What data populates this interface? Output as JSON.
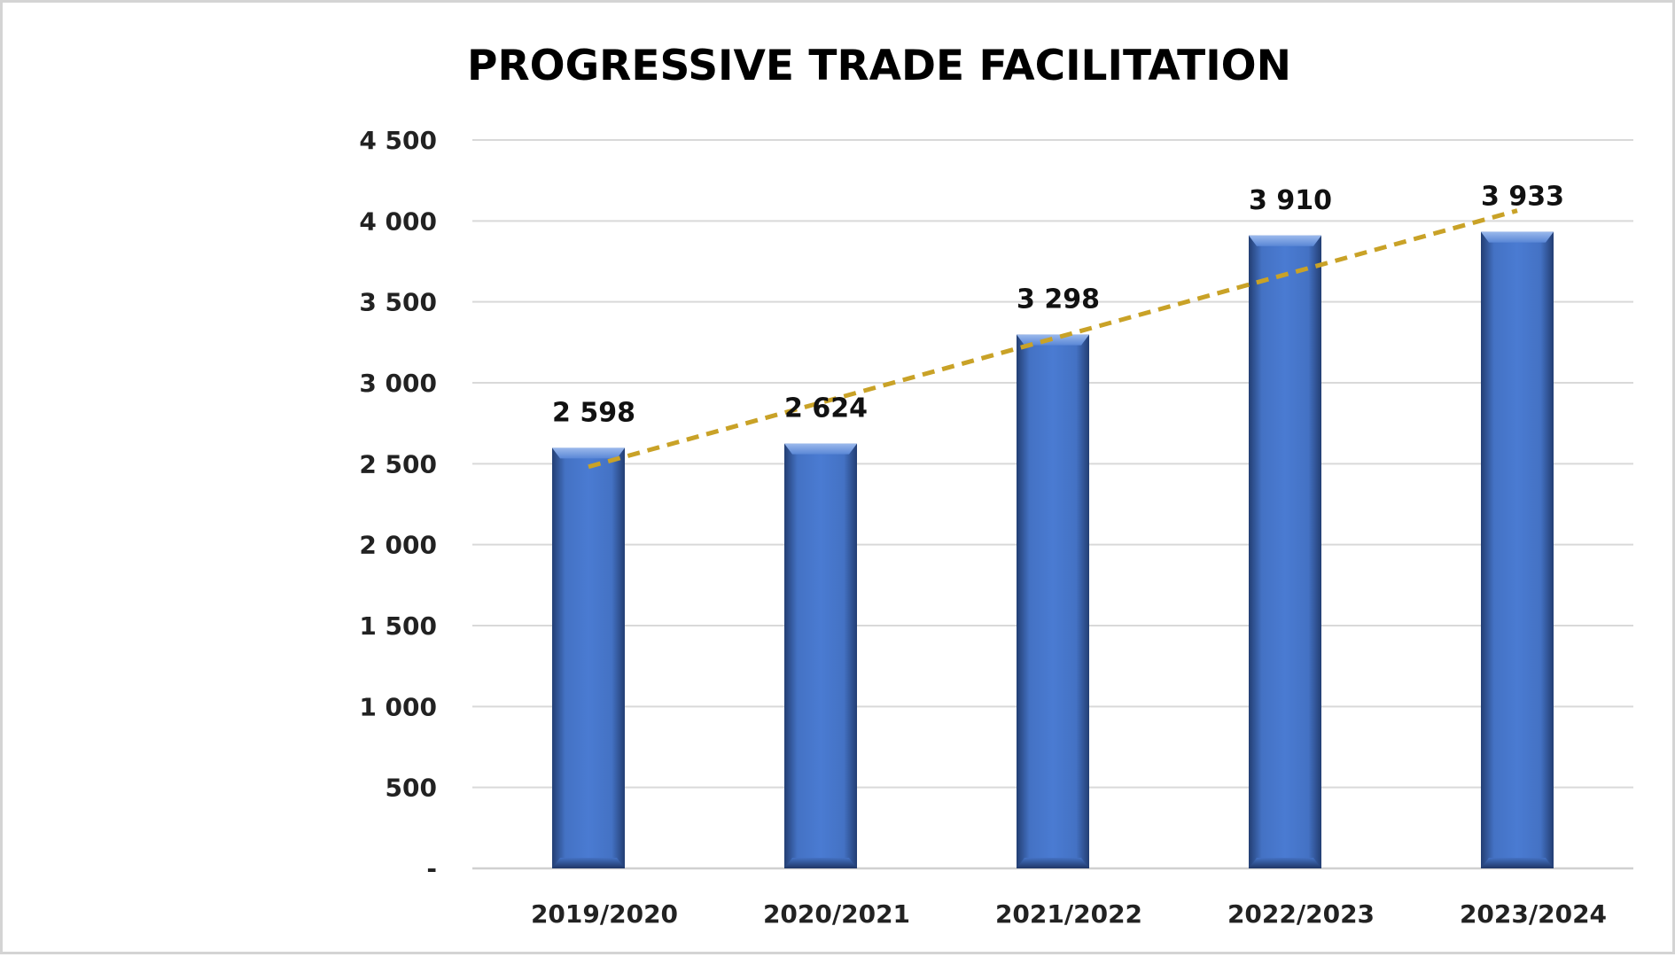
{
  "chart_data": {
    "type": "bar",
    "title": "PROGRESSIVE TRADE FACILITATION",
    "xlabel": "",
    "ylabel": "",
    "categories": [
      "2019/2020",
      "2020/2021",
      "2021/2022",
      "2022/2023",
      "2023/2024"
    ],
    "values": [
      2598,
      2624,
      3298,
      3910,
      3933
    ],
    "data_labels": [
      "2 598",
      "2 624",
      "3 298",
      "3 910",
      "3 933"
    ],
    "ylim": [
      0,
      4500
    ],
    "yticks": [
      0,
      500,
      1000,
      1500,
      2000,
      2500,
      3000,
      3500,
      4000,
      4500
    ],
    "ytick_labels": [
      "-",
      "500",
      "1 000",
      "1 500",
      "2 000",
      "2 500",
      "3 000",
      "3 500",
      "4 000",
      "4 500"
    ],
    "grid": true,
    "legend": "none",
    "trendline": {
      "type": "linear",
      "style": "dashed",
      "color": "#C9A227"
    },
    "colors": {
      "bar": "#4472C4",
      "bar_dark": "#2A4A8A",
      "grid": "#D9D9D9"
    }
  }
}
